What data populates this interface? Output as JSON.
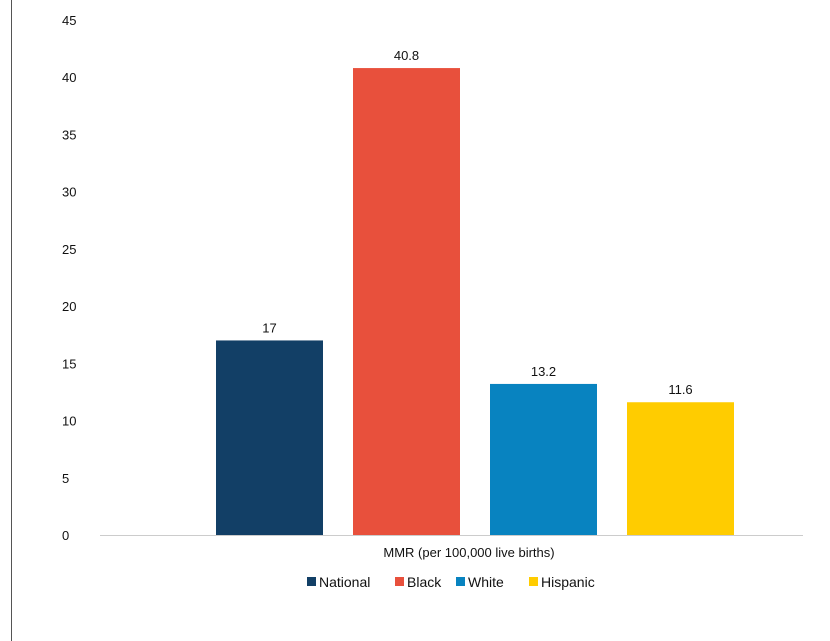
{
  "chart_data": {
    "type": "bar",
    "categories": [
      "MMR (per 100,000 live births)"
    ],
    "series": [
      {
        "name": "National",
        "values": [
          17
        ],
        "color": "#123f66"
      },
      {
        "name": "Black",
        "values": [
          40.8
        ],
        "color": "#e8503c"
      },
      {
        "name": "White",
        "values": [
          13.2
        ],
        "color": "#0883c0"
      },
      {
        "name": "Hispanic",
        "values": [
          11.6
        ],
        "color": "#ffcc00"
      }
    ],
    "data_labels": [
      "17",
      "40.8",
      "13.2",
      "11.6"
    ],
    "title": "",
    "xlabel": "",
    "ylabel": "",
    "ylim": [
      0,
      45
    ],
    "yticks": [
      "0",
      "5",
      "10",
      "15",
      "20",
      "25",
      "30",
      "35",
      "40",
      "45"
    ],
    "grid": false,
    "legend_position": "bottom"
  }
}
